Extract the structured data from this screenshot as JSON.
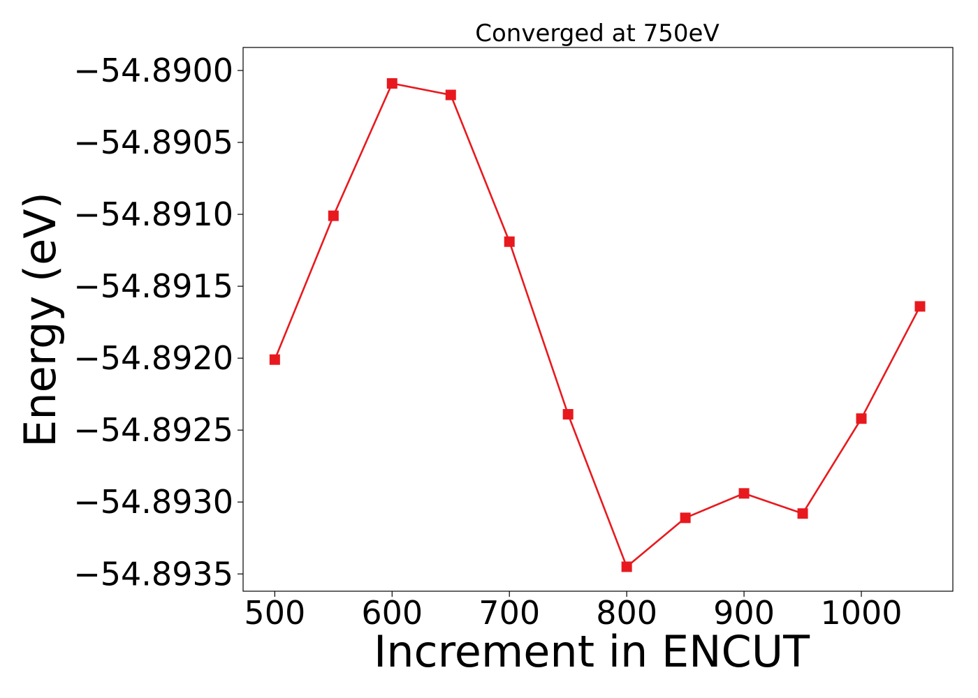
{
  "chart_data": {
    "type": "line",
    "title": "Converged at 750eV",
    "xlabel": "Increment in ENCUT",
    "ylabel": "Energy (eV)",
    "xlim": [
      473,
      1078
    ],
    "ylim": [
      -54.89362,
      -54.88984
    ],
    "xticks": [
      500,
      600,
      700,
      800,
      900,
      1000
    ],
    "xtick_labels": [
      "500",
      "600",
      "700",
      "800",
      "900",
      "1000"
    ],
    "yticks": [
      -54.89,
      -54.8905,
      -54.891,
      -54.8915,
      -54.892,
      -54.8925,
      -54.893,
      -54.8935
    ],
    "ytick_labels": [
      "−54.8900",
      "−54.8905",
      "−54.8910",
      "−54.8915",
      "−54.8920",
      "−54.8925",
      "−54.8930",
      "−54.8935"
    ],
    "grid": false,
    "series": [
      {
        "color": "#e8191e",
        "marker": "square",
        "x": [
          500,
          550,
          600,
          650,
          700,
          750,
          800,
          850,
          900,
          950,
          1000,
          1050
        ],
        "y": [
          -54.89201,
          -54.89101,
          -54.89009,
          -54.89017,
          -54.89119,
          -54.89239,
          -54.89345,
          -54.89311,
          -54.89294,
          -54.89308,
          -54.89242,
          -54.89164
        ]
      }
    ]
  }
}
